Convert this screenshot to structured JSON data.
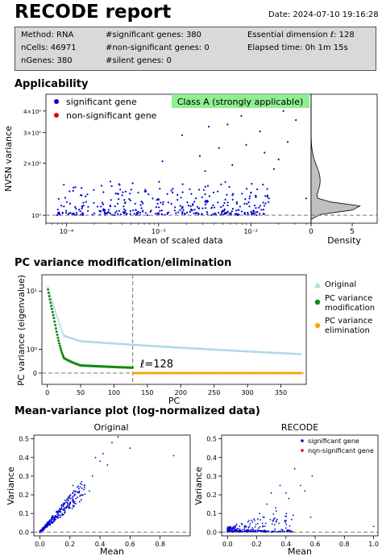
{
  "header": {
    "title": "RECODE report",
    "date": "Date: 2024-07-10 19:16:28"
  },
  "summary": {
    "method": "Method: RNA",
    "ncells": "nCells: 46971",
    "ngenes": "nGenes: 380",
    "significant": "#significant genes: 380",
    "nonsignificant": "#non-significant genes: 0",
    "silent": "#silent genes: 0",
    "essential_dim": "Essential dimension ℓ: 128",
    "elapsed": "Elapsed time: 0h 1m 15s"
  },
  "sections": {
    "applicability": "Applicability",
    "pc_variance": "PC variance modification/elimination",
    "mean_variance": "Mean-variance plot (log-normalized data)"
  },
  "colors": {
    "significant": "#0000cc",
    "nonsignificant": "#e00000",
    "original": "#add8e6",
    "modification": "#138a13",
    "elimination": "#f2a90f",
    "class_box": "#90ee90",
    "density_fill": "#c0c0c0"
  },
  "chart_data": [
    {
      "id": "applicability",
      "type": "scatter",
      "title": "",
      "xlabel": "Mean of scaled data",
      "ylabel": "NVSN variance",
      "x_scale": "log",
      "y_scale": "log",
      "xlim": [
        6e-05,
        0.045
      ],
      "ylim": [
        0.9,
        5
      ],
      "x_ticks": [
        "10⁻⁴",
        "10⁻³",
        "10⁻²"
      ],
      "y_ticks": [
        "10⁰",
        "2×10⁰",
        "3×10⁰",
        "4×10⁰"
      ],
      "legend": [
        "significant gene",
        "non-significant gene"
      ],
      "legend_position": "top-left",
      "annotation": "Class A (strongly applicable)",
      "reference_line_y": 1,
      "n_points": 380,
      "density_panel": {
        "xlabel": "Density",
        "x_ticks": [
          "0",
          "5"
        ],
        "xlim": [
          0,
          8
        ]
      },
      "highlight_points": [
        {
          "x": 0.0225,
          "y": 4.0
        },
        {
          "x": 0.0079,
          "y": 3.75
        },
        {
          "x": 0.0308,
          "y": 3.55
        },
        {
          "x": 0.0056,
          "y": 3.35
        },
        {
          "x": 0.0035,
          "y": 3.25
        },
        {
          "x": 0.0126,
          "y": 3.05
        },
        {
          "x": 0.0018,
          "y": 2.9
        },
        {
          "x": 0.0251,
          "y": 2.65
        },
        {
          "x": 0.0089,
          "y": 2.55
        },
        {
          "x": 0.0045,
          "y": 2.45
        },
        {
          "x": 0.0141,
          "y": 2.3
        },
        {
          "x": 0.0028,
          "y": 2.2
        },
        {
          "x": 0.02,
          "y": 2.1
        },
        {
          "x": 0.0011,
          "y": 2.05
        },
        {
          "x": 0.0063,
          "y": 1.95
        },
        {
          "x": 0.0178,
          "y": 1.85
        },
        {
          "x": 0.0032,
          "y": 1.8
        },
        {
          "x": 0.0398,
          "y": 1.25
        }
      ]
    },
    {
      "id": "pc_variance",
      "type": "scatter",
      "title": "",
      "xlabel": "PC",
      "ylabel": "PC variance (eigenvalue)",
      "y_scale": "symlog",
      "xlim": [
        -8,
        388
      ],
      "x_ticks": [
        0,
        50,
        100,
        150,
        200,
        250,
        300,
        350
      ],
      "y_ticks": [
        "0",
        "10⁰",
        "10¹"
      ],
      "essential_dimension": 128,
      "annotation": "ℓ=128",
      "legend": [
        "Original",
        "PC variance\nmodification",
        "PC variance\nelimination"
      ],
      "legend_position": "right",
      "series": [
        {
          "name": "Original",
          "n": 380,
          "first": 11.5,
          "at_25": 2.0,
          "at_50": 1.55,
          "at_128": 1.3,
          "last": 0.75
        },
        {
          "name": "PC variance\nmodification",
          "n": 128,
          "first": 10.5,
          "at_10": 4.0,
          "at_25": 0.55,
          "at_50": 0.25,
          "last": 0.17
        },
        {
          "name": "PC variance\nelimination",
          "from": 129,
          "to": 380,
          "value": 0
        }
      ]
    },
    {
      "id": "mean_variance_original",
      "type": "scatter",
      "title": "Original",
      "xlabel": "Mean",
      "ylabel": "Variance",
      "xlim": [
        -0.04,
        1.0
      ],
      "ylim": [
        -0.02,
        0.52
      ],
      "x_ticks": [
        0.0,
        0.2,
        0.4,
        0.6,
        0.8
      ],
      "y_ticks": [
        0.0,
        0.1,
        0.2,
        0.3,
        0.4,
        0.5
      ],
      "reference_line_y": 0,
      "n_points": 380,
      "highlight_points": [
        {
          "x": 0.52,
          "y": 0.51
        },
        {
          "x": 0.48,
          "y": 0.48
        },
        {
          "x": 0.6,
          "y": 0.45
        },
        {
          "x": 0.42,
          "y": 0.42
        },
        {
          "x": 0.37,
          "y": 0.4
        },
        {
          "x": 0.89,
          "y": 0.41
        },
        {
          "x": 0.4,
          "y": 0.38
        },
        {
          "x": 0.45,
          "y": 0.36
        },
        {
          "x": 0.35,
          "y": 0.3
        },
        {
          "x": 0.27,
          "y": 0.26
        },
        {
          "x": 0.25,
          "y": 0.24
        },
        {
          "x": 0.22,
          "y": 0.25
        },
        {
          "x": 0.33,
          "y": 0.22
        },
        {
          "x": 0.28,
          "y": 0.2
        },
        {
          "x": 0.24,
          "y": 0.18
        }
      ]
    },
    {
      "id": "mean_variance_recode",
      "type": "scatter",
      "title": "RECODE",
      "xlabel": "Mean",
      "ylabel": "Variance",
      "xlim": [
        -0.04,
        1.03
      ],
      "ylim": [
        -0.02,
        0.52
      ],
      "x_ticks": [
        0.0,
        0.2,
        0.4,
        0.6,
        0.8,
        1.0
      ],
      "y_ticks": [
        0.0,
        0.1,
        0.2,
        0.3,
        0.4,
        0.5
      ],
      "legend": [
        "significant gene",
        "non-significant gene"
      ],
      "legend_position": "top-right",
      "reference_line_y": 0,
      "n_points": 380,
      "highlight_points": [
        {
          "x": 0.6,
          "y": 0.42
        },
        {
          "x": 0.46,
          "y": 0.34
        },
        {
          "x": 0.58,
          "y": 0.3
        },
        {
          "x": 0.36,
          "y": 0.25
        },
        {
          "x": 0.5,
          "y": 0.25
        },
        {
          "x": 0.53,
          "y": 0.22
        },
        {
          "x": 0.4,
          "y": 0.21
        },
        {
          "x": 0.3,
          "y": 0.21
        },
        {
          "x": 0.42,
          "y": 0.18
        },
        {
          "x": 0.27,
          "y": 0.15
        },
        {
          "x": 0.33,
          "y": 0.13
        },
        {
          "x": 0.22,
          "y": 0.1
        },
        {
          "x": 0.45,
          "y": 0.09
        },
        {
          "x": 0.57,
          "y": 0.08
        },
        {
          "x": 1.0,
          "y": 0.03
        }
      ]
    }
  ]
}
